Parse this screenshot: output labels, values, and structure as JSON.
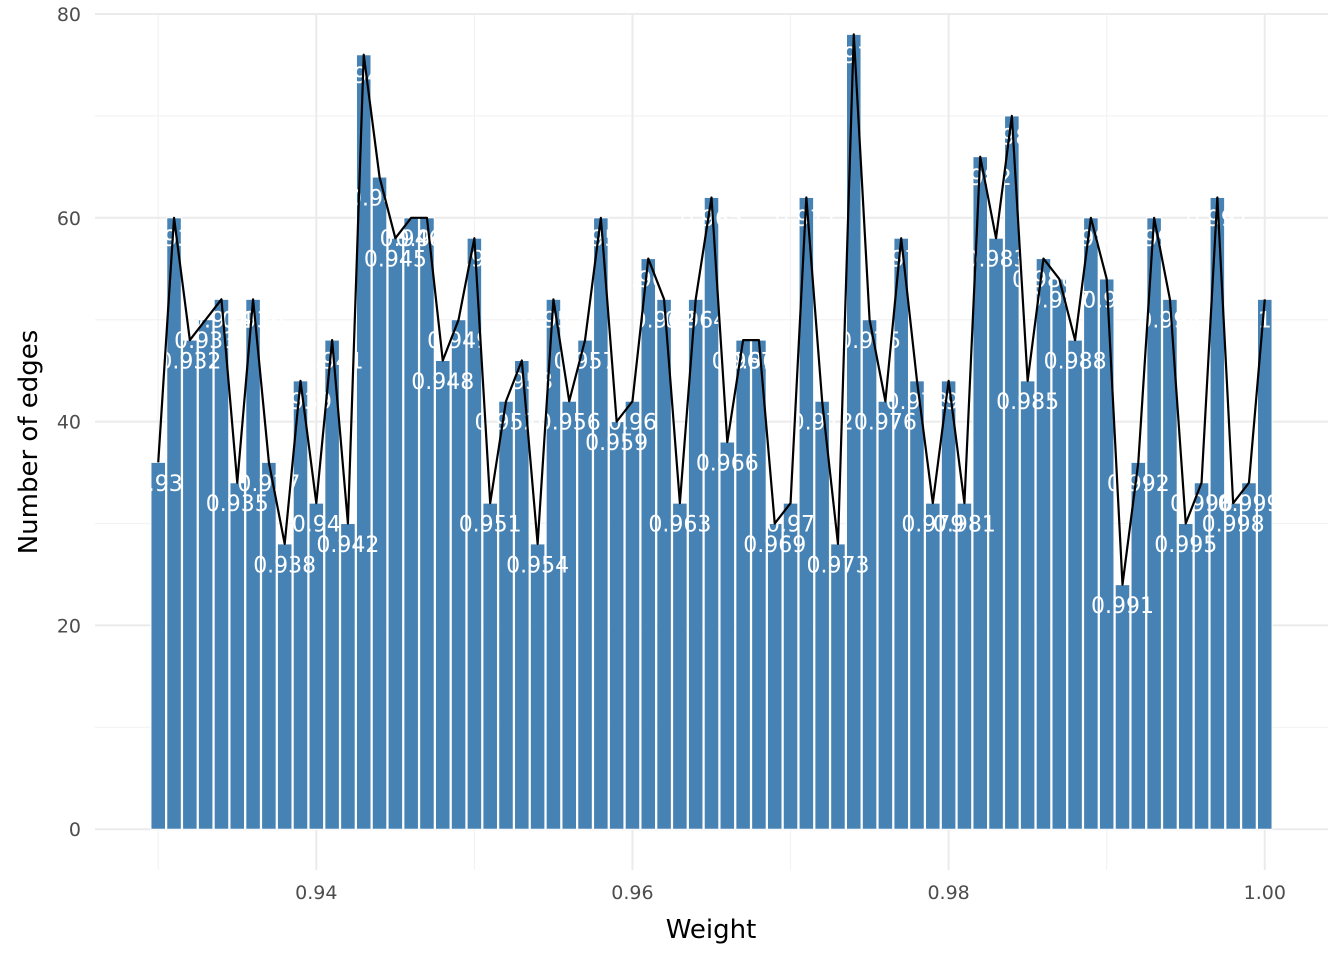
{
  "chart_data": {
    "type": "bar",
    "xlabel": "Weight",
    "ylabel": "Number of edges",
    "xlim": [
      0.926,
      1.004
    ],
    "ylim": [
      -4,
      80
    ],
    "x_ticks": [
      0.94,
      0.96,
      0.98,
      1.0
    ],
    "x_tick_labels": [
      "0.94",
      "0.96",
      "0.98",
      "1.00"
    ],
    "y_ticks": [
      0,
      20,
      40,
      60,
      80
    ],
    "y_tick_labels": [
      "0",
      "20",
      "40",
      "60",
      "80"
    ],
    "grid": true,
    "legend": "none",
    "bar_color": "#4682b4",
    "line_color": "#000000",
    "label_color": "#ffffff",
    "bar_width": 0.00092,
    "x": [
      0.93,
      0.931,
      0.932,
      0.933,
      0.934,
      0.935,
      0.936,
      0.937,
      0.938,
      0.939,
      0.94,
      0.941,
      0.942,
      0.943,
      0.944,
      0.945,
      0.946,
      0.947,
      0.948,
      0.949,
      0.95,
      0.951,
      0.952,
      0.953,
      0.954,
      0.955,
      0.956,
      0.957,
      0.958,
      0.959,
      0.96,
      0.961,
      0.962,
      0.963,
      0.964,
      0.965,
      0.966,
      0.967,
      0.968,
      0.969,
      0.97,
      0.971,
      0.972,
      0.973,
      0.974,
      0.975,
      0.976,
      0.977,
      0.978,
      0.979,
      0.98,
      0.981,
      0.982,
      0.983,
      0.984,
      0.985,
      0.986,
      0.987,
      0.988,
      0.989,
      0.99,
      0.991,
      0.992,
      0.993,
      0.994,
      0.995,
      0.996,
      0.997,
      0.998,
      0.999,
      1.0
    ],
    "values": [
      36,
      60,
      48,
      50,
      52,
      34,
      52,
      36,
      28,
      44,
      32,
      48,
      30,
      76,
      64,
      58,
      60,
      60,
      46,
      50,
      58,
      32,
      42,
      46,
      28,
      52,
      42,
      48,
      60,
      40,
      42,
      56,
      52,
      32,
      52,
      62,
      38,
      48,
      48,
      30,
      32,
      62,
      42,
      28,
      78,
      50,
      42,
      58,
      44,
      32,
      44,
      32,
      66,
      58,
      70,
      44,
      56,
      54,
      48,
      60,
      54,
      24,
      36,
      60,
      52,
      30,
      34,
      62,
      32,
      34,
      52
    ],
    "labels": [
      "0.93",
      "0.931",
      "0.932",
      "0.933",
      "0.934",
      "0.935",
      "0.936",
      "0.937",
      "0.938",
      "0.939",
      "0.94",
      "0.941",
      "0.942",
      "0.943",
      "0.944",
      "0.945",
      "0.946",
      "0.947",
      "0.948",
      "0.949",
      "0.95",
      "0.951",
      "0.952",
      "0.953",
      "0.954",
      "0.955",
      "0.956",
      "0.957",
      "0.958",
      "0.959",
      "0.96",
      "0.961",
      "0.962",
      "0.963",
      "0.964",
      "0.965",
      "0.966",
      "0.967",
      "0.968",
      "0.969",
      "0.97",
      "0.971",
      "0.972",
      "0.973",
      "0.974",
      "0.975",
      "0.976",
      "0.977",
      "0.978",
      "0.979",
      "0.98",
      "0.981",
      "0.982",
      "0.983",
      "0.984",
      "0.985",
      "0.986",
      "0.987",
      "0.988",
      "0.989",
      "0.99",
      "0.991",
      "0.992",
      "0.993",
      "0.994",
      "0.995",
      "0.996",
      "0.997",
      "0.998",
      "0.999",
      "1"
    ]
  }
}
